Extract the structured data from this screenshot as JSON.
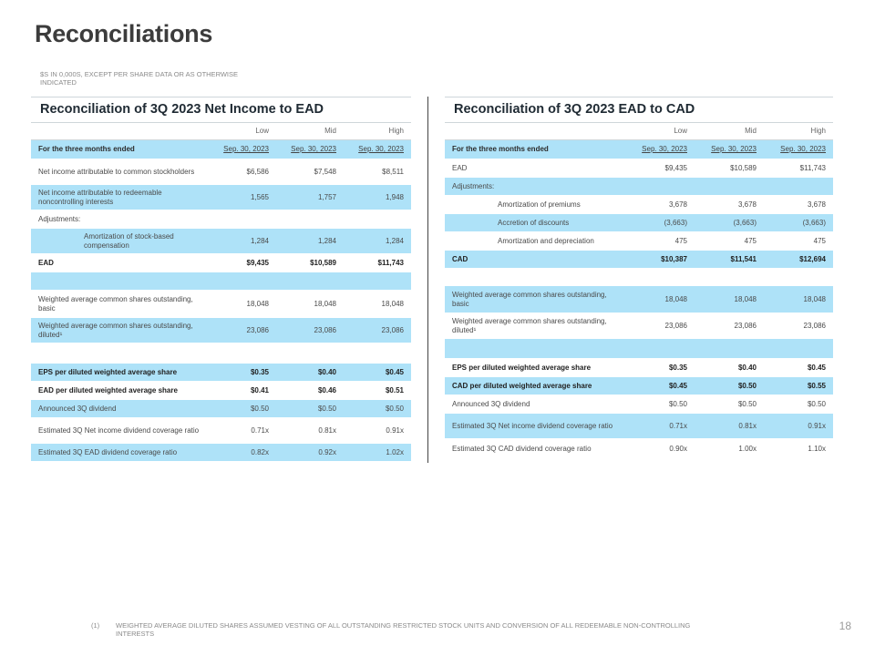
{
  "page": {
    "title": "Reconciliations",
    "units_note": "$s in 0,000s, except per share data or as otherwise indicated",
    "page_number": "18",
    "footnote_marker": "(1)",
    "footnote_text": "Weighted average diluted shares assumed vesting of all outstanding restricted stock units and conversion of all redeemable non-controlling interests"
  },
  "left": {
    "title": "Reconciliation of 3Q 2023 Net Income to EAD",
    "columns": [
      "Low",
      "Mid",
      "High"
    ],
    "rows": [
      {
        "label": "For the three months ended",
        "values": [
          "Sep. 30, 2023",
          "Sep. 30, 2023",
          "Sep. 30, 2023"
        ]
      },
      {
        "label": "Net income attributable to common stockholders",
        "values": [
          "$6,586",
          "$7,548",
          "$8,511"
        ]
      },
      {
        "label": "Net income attributable to redeemable noncontrolling interests",
        "values": [
          "1,565",
          "1,757",
          "1,948"
        ]
      },
      {
        "label": "Adjustments:",
        "values": [
          "",
          "",
          ""
        ]
      },
      {
        "label": "Amortization of stock-based compensation",
        "values": [
          "1,284",
          "1,284",
          "1,284"
        ]
      },
      {
        "label": "EAD",
        "values": [
          "$9,435",
          "$10,589",
          "$11,743"
        ]
      },
      {
        "label": "",
        "values": [
          "",
          "",
          ""
        ]
      },
      {
        "label": "Weighted average common shares outstanding, basic",
        "values": [
          "18,048",
          "18,048",
          "18,048"
        ]
      },
      {
        "label": "Weighted average common shares outstanding, diluted¹",
        "values": [
          "23,086",
          "23,086",
          "23,086"
        ]
      },
      {
        "label": "",
        "values": [
          "",
          "",
          ""
        ]
      },
      {
        "label": "EPS per diluted weighted average share",
        "values": [
          "$0.35",
          "$0.40",
          "$0.45"
        ]
      },
      {
        "label": "EAD per diluted weighted average share",
        "values": [
          "$0.41",
          "$0.46",
          "$0.51"
        ]
      },
      {
        "label": "Announced 3Q dividend",
        "values": [
          "$0.50",
          "$0.50",
          "$0.50"
        ]
      },
      {
        "label": "Estimated 3Q Net income dividend coverage ratio",
        "values": [
          "0.71x",
          "0.81x",
          "0.91x"
        ]
      },
      {
        "label": "Estimated 3Q EAD dividend coverage ratio",
        "values": [
          "0.82x",
          "0.92x",
          "1.02x"
        ]
      }
    ]
  },
  "right": {
    "title": "Reconciliation of 3Q 2023 EAD to CAD",
    "columns": [
      "Low",
      "Mid",
      "High"
    ],
    "rows": [
      {
        "label": "For the three months ended",
        "values": [
          "Sep. 30, 2023",
          "Sep. 30, 2023",
          "Sep. 30, 2023"
        ]
      },
      {
        "label": "EAD",
        "values": [
          "$9,435",
          "$10,589",
          "$11,743"
        ]
      },
      {
        "label": "Adjustments:",
        "values": [
          "",
          "",
          ""
        ]
      },
      {
        "label": "Amortization of premiums",
        "values": [
          "3,678",
          "3,678",
          "3,678"
        ]
      },
      {
        "label": "Accretion of discounts",
        "values": [
          "(3,663)",
          "(3,663)",
          "(3,663)"
        ]
      },
      {
        "label": "Amortization and depreciation",
        "values": [
          "475",
          "475",
          "475"
        ]
      },
      {
        "label": "CAD",
        "values": [
          "$10,387",
          "$11,541",
          "$12,694"
        ]
      },
      {
        "label": "",
        "values": [
          "",
          "",
          ""
        ]
      },
      {
        "label": "Weighted average common shares outstanding, basic",
        "values": [
          "18,048",
          "18,048",
          "18,048"
        ]
      },
      {
        "label": "Weighted average common shares outstanding, diluted¹",
        "values": [
          "23,086",
          "23,086",
          "23,086"
        ]
      },
      {
        "label": "",
        "values": [
          "",
          "",
          ""
        ]
      },
      {
        "label": "EPS per diluted weighted average share",
        "values": [
          "$0.35",
          "$0.40",
          "$0.45"
        ]
      },
      {
        "label": "CAD per diluted weighted average share",
        "values": [
          "$0.45",
          "$0.50",
          "$0.55"
        ]
      },
      {
        "label": "Announced 3Q dividend",
        "values": [
          "$0.50",
          "$0.50",
          "$0.50"
        ]
      },
      {
        "label": "Estimated 3Q Net income dividend coverage ratio",
        "values": [
          "0.71x",
          "0.81x",
          "0.91x"
        ]
      },
      {
        "label": "Estimated 3Q CAD dividend coverage ratio",
        "values": [
          "0.90x",
          "1.00x",
          "1.10x"
        ]
      }
    ]
  },
  "colors": {
    "row_highlight": "#aee2f8",
    "title_text": "#1f2a33"
  }
}
